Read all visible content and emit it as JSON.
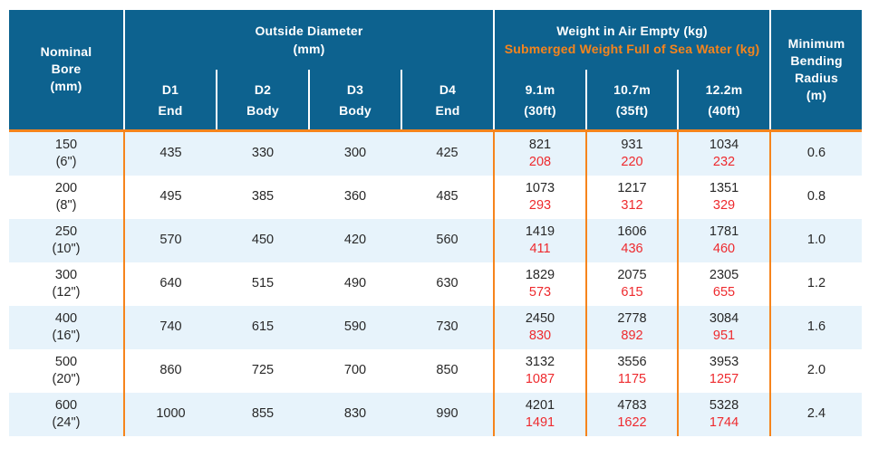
{
  "colors": {
    "header_bg": "#0d628f",
    "header_text": "#ffffff",
    "accent_orange": "#f6841c",
    "submerged_red": "#ee2a2e",
    "row_stripe": "#e7f3fb",
    "data_text": "#282828"
  },
  "header": {
    "nominal_bore": [
      "Nominal",
      "Bore",
      "(mm)"
    ],
    "outside_diameter": {
      "title": "Outside Diameter",
      "unit": "(mm)",
      "columns": [
        {
          "id": "D1",
          "part": "End"
        },
        {
          "id": "D2",
          "part": "Body"
        },
        {
          "id": "D3",
          "part": "Body"
        },
        {
          "id": "D4",
          "part": "End"
        }
      ]
    },
    "weight": {
      "air_title": "Weight in Air Empty (kg)",
      "submerged_title": "Submerged Weight Full of Sea Water (kg)",
      "columns": [
        {
          "length": "9.1m",
          "feet": "(30ft)"
        },
        {
          "length": "10.7m",
          "feet": "(35ft)"
        },
        {
          "length": "12.2m",
          "feet": "(40ft)"
        }
      ]
    },
    "min_bending_radius": [
      "Minimum",
      "Bending",
      "Radius",
      "(m)"
    ]
  },
  "rows": [
    {
      "bore": "150",
      "bore_inch": "(6\")",
      "d1": "435",
      "d2": "330",
      "d3": "300",
      "d4": "425",
      "w_9_1_air": "821",
      "w_9_1_sub": "208",
      "w_10_7_air": "931",
      "w_10_7_sub": "220",
      "w_12_2_air": "1034",
      "w_12_2_sub": "232",
      "radius": "0.6"
    },
    {
      "bore": "200",
      "bore_inch": "(8\")",
      "d1": "495",
      "d2": "385",
      "d3": "360",
      "d4": "485",
      "w_9_1_air": "1073",
      "w_9_1_sub": "293",
      "w_10_7_air": "1217",
      "w_10_7_sub": "312",
      "w_12_2_air": "1351",
      "w_12_2_sub": "329",
      "radius": "0.8"
    },
    {
      "bore": "250",
      "bore_inch": "(10\")",
      "d1": "570",
      "d2": "450",
      "d3": "420",
      "d4": "560",
      "w_9_1_air": "1419",
      "w_9_1_sub": "411",
      "w_10_7_air": "1606",
      "w_10_7_sub": "436",
      "w_12_2_air": "1781",
      "w_12_2_sub": "460",
      "radius": "1.0"
    },
    {
      "bore": "300",
      "bore_inch": "(12\")",
      "d1": "640",
      "d2": "515",
      "d3": "490",
      "d4": "630",
      "w_9_1_air": "1829",
      "w_9_1_sub": "573",
      "w_10_7_air": "2075",
      "w_10_7_sub": "615",
      "w_12_2_air": "2305",
      "w_12_2_sub": "655",
      "radius": "1.2"
    },
    {
      "bore": "400",
      "bore_inch": "(16\")",
      "d1": "740",
      "d2": "615",
      "d3": "590",
      "d4": "730",
      "w_9_1_air": "2450",
      "w_9_1_sub": "830",
      "w_10_7_air": "2778",
      "w_10_7_sub": "892",
      "w_12_2_air": "3084",
      "w_12_2_sub": "951",
      "radius": "1.6"
    },
    {
      "bore": "500",
      "bore_inch": "(20\")",
      "d1": "860",
      "d2": "725",
      "d3": "700",
      "d4": "850",
      "w_9_1_air": "3132",
      "w_9_1_sub": "1087",
      "w_10_7_air": "3556",
      "w_10_7_sub": "1175",
      "w_12_2_air": "3953",
      "w_12_2_sub": "1257",
      "radius": "2.0"
    },
    {
      "bore": "600",
      "bore_inch": "(24\")",
      "d1": "1000",
      "d2": "855",
      "d3": "830",
      "d4": "990",
      "w_9_1_air": "4201",
      "w_9_1_sub": "1491",
      "w_10_7_air": "4783",
      "w_10_7_sub": "1622",
      "w_12_2_air": "5328",
      "w_12_2_sub": "1744",
      "radius": "2.4"
    }
  ]
}
